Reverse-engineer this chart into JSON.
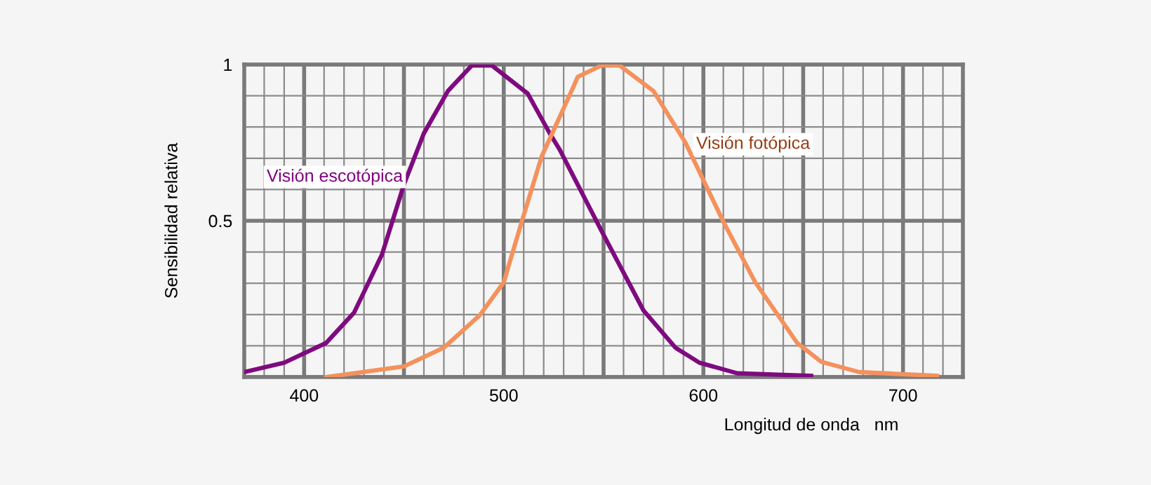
{
  "chart_data": {
    "type": "line",
    "xlabel": "Longitud de onda   nm",
    "ylabel": "Sensibilidad relativa",
    "xlim": [
      370,
      730
    ],
    "ylim": [
      0,
      1
    ],
    "xticks": [
      400,
      {
        "value": 450,
        "label": null
      },
      500,
      {
        "value": 550,
        "label": null
      },
      600,
      {
        "value": 650,
        "label": null
      },
      700
    ],
    "yticks": [
      {
        "value": 0,
        "label": null
      },
      0.5,
      1
    ],
    "grid": true,
    "marker": "none",
    "line_style": "solid",
    "series": [
      {
        "name": "Visión escotópica",
        "color": "#7f0a7f",
        "x": [
          370,
          390,
          411,
          425,
          439,
          450,
          460,
          472,
          484,
          494,
          512,
          523,
          528,
          549,
          570,
          586,
          598,
          617,
          654
        ],
        "values": [
          0.016,
          0.046,
          0.109,
          0.206,
          0.392,
          0.616,
          0.78,
          0.915,
          0.997,
          0.997,
          0.907,
          0.78,
          0.728,
          0.467,
          0.213,
          0.094,
          0.046,
          0.012,
          0.004
        ]
      },
      {
        "name": "Visión fotópica",
        "color": "#f4915c",
        "x": [
          411,
          450,
          470,
          488,
          500,
          509,
          519,
          535,
          537,
          549,
          558,
          575,
          591,
          610,
          626,
          647,
          659,
          678,
          717
        ],
        "values": [
          0.0,
          0.034,
          0.094,
          0.198,
          0.303,
          0.497,
          0.706,
          0.93,
          0.96,
          0.997,
          0.997,
          0.915,
          0.75,
          0.497,
          0.303,
          0.109,
          0.049,
          0.016,
          0.004
        ]
      }
    ]
  }
}
